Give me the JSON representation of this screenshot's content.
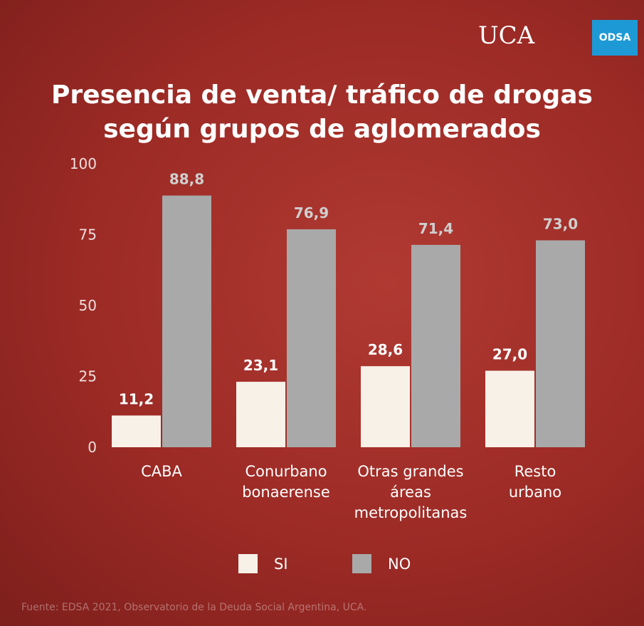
{
  "logo": "UCA",
  "badge": "ODSA",
  "chart_data": {
    "type": "bar",
    "title": "Presencia de venta/ tráfico de drogas\nsegún grupos de aglomerados",
    "categories": [
      "CABA",
      "Conurbano\nbonaerense",
      "Otras grandes\náreas\nmetropolitanas",
      "Resto\nurbano"
    ],
    "series": [
      {
        "name": "SI",
        "color": "#f7f1e8",
        "values": [
          11.2,
          23.1,
          28.6,
          27.0
        ],
        "value_labels": [
          "11,2",
          "23,1",
          "28,6",
          "27,0"
        ]
      },
      {
        "name": "NO",
        "color": "#a9a9a9",
        "values": [
          88.8,
          76.9,
          71.4,
          73.0
        ],
        "value_labels": [
          "88,8",
          "76,9",
          "71,4",
          "73,0"
        ]
      }
    ],
    "ylim": [
      0,
      100
    ],
    "yticks": [
      0,
      25,
      50,
      75,
      100
    ],
    "source": "Fuente: EDSA 2021, Observatorio de la Deuda Social Argentina, UCA."
  }
}
